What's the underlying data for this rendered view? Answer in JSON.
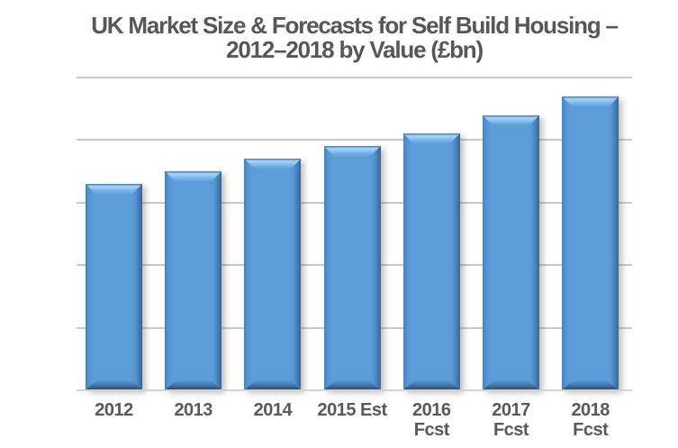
{
  "title": {
    "line1": "UK Market Size & Forecasts for Self Build Housing –",
    "line2": "2012–2018 by Value (£bn)"
  },
  "colors": {
    "bar_fill": "#5b9cd9",
    "bar_bevel_highlight": "#a7d3f8",
    "bar_bevel_shadow": "#1d4875",
    "gridline": "#c9c9c9",
    "axis_line": "#d2d2d2",
    "text": "#595959",
    "background": "#ffffff"
  },
  "chart_data": {
    "type": "bar",
    "title": "UK Market Size & Forecasts for Self Build Housing – 2012–2018 by Value (£bn)",
    "unit": "£bn",
    "categories": [
      "2012",
      "2013",
      "2014",
      "2015 Est",
      "2016\nFcst",
      "2017\nFcst",
      "2018\nFcst"
    ],
    "values": [
      3.3,
      3.5,
      3.7,
      3.9,
      4.1,
      4.4,
      4.7
    ],
    "xlabel": "",
    "ylabel": "",
    "ylim": [
      0,
      5
    ],
    "gridline_interval": 1,
    "y_axis_labels_visible": false,
    "legend": "none",
    "bar_style": "3d-bevel",
    "bar_color": "#5b9cd9"
  }
}
